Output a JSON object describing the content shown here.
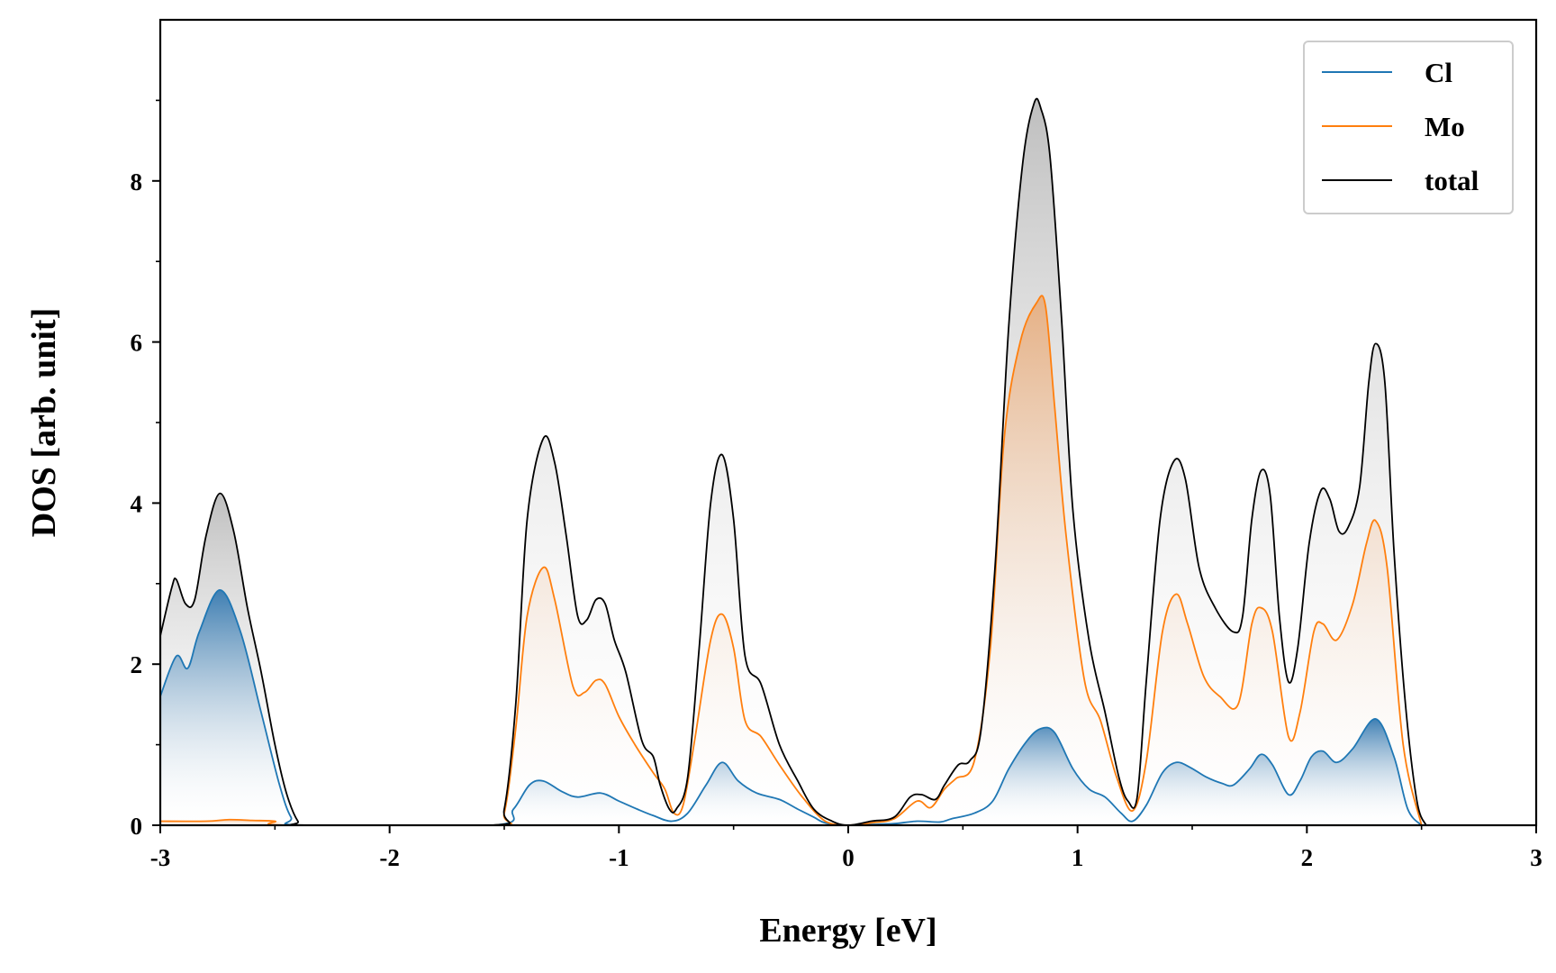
{
  "chart_data": {
    "type": "area",
    "xlabel": "Energy [eV]",
    "ylabel": "DOS [arb. unit]",
    "xlim": [
      -3,
      3
    ],
    "ylim": [
      0,
      10
    ],
    "xticks": [
      "-3",
      "-2",
      "-1",
      "0",
      "1",
      "2",
      "3"
    ],
    "yticks": [
      "0",
      "2",
      "4",
      "6",
      "8"
    ],
    "grid": false,
    "legend_position": "top-right",
    "series": [
      {
        "name": "Cl",
        "color": "#1f77b4",
        "x": [
          -3.0,
          -2.93,
          -2.88,
          -2.83,
          -2.74,
          -2.65,
          -2.56,
          -2.48,
          -2.43,
          -2.38,
          -1.55,
          -1.46,
          -1.39,
          -1.33,
          -1.25,
          -1.18,
          -1.08,
          -1.0,
          -0.92,
          -0.85,
          -0.77,
          -0.7,
          -0.62,
          -0.55,
          -0.48,
          -0.4,
          -0.3,
          -0.22,
          -0.15,
          -0.1,
          0.0,
          0.1,
          0.2,
          0.3,
          0.4,
          0.45,
          0.55,
          0.63,
          0.7,
          0.78,
          0.84,
          0.9,
          0.98,
          1.05,
          1.12,
          1.19,
          1.24,
          1.3,
          1.37,
          1.43,
          1.49,
          1.56,
          1.63,
          1.68,
          1.75,
          1.8,
          1.85,
          1.92,
          1.97,
          2.02,
          2.07,
          2.13,
          2.2,
          2.3,
          2.38,
          2.44,
          2.5
        ],
        "y": [
          1.6,
          2.1,
          1.95,
          2.4,
          2.92,
          2.4,
          1.4,
          0.5,
          0.1,
          0.0,
          0.0,
          0.2,
          0.5,
          0.55,
          0.42,
          0.35,
          0.4,
          0.3,
          0.2,
          0.12,
          0.05,
          0.15,
          0.5,
          0.78,
          0.55,
          0.4,
          0.32,
          0.2,
          0.1,
          0.03,
          0.0,
          0.01,
          0.02,
          0.05,
          0.04,
          0.08,
          0.15,
          0.3,
          0.7,
          1.05,
          1.2,
          1.15,
          0.7,
          0.45,
          0.35,
          0.15,
          0.05,
          0.25,
          0.65,
          0.78,
          0.72,
          0.6,
          0.52,
          0.5,
          0.7,
          0.88,
          0.75,
          0.38,
          0.55,
          0.85,
          0.92,
          0.78,
          0.95,
          1.32,
          0.85,
          0.2,
          0.0
        ]
      },
      {
        "name": "Mo",
        "color": "#ff7f0e",
        "x": [
          -3.0,
          -2.8,
          -2.7,
          -2.6,
          -2.5,
          -2.45,
          -1.55,
          -1.5,
          -1.45,
          -1.4,
          -1.33,
          -1.28,
          -1.2,
          -1.15,
          -1.1,
          -1.06,
          -1.0,
          -0.93,
          -0.85,
          -0.8,
          -0.76,
          -0.72,
          -0.67,
          -0.6,
          -0.55,
          -0.5,
          -0.45,
          -0.38,
          -0.3,
          -0.2,
          -0.1,
          0.0,
          0.1,
          0.2,
          0.3,
          0.36,
          0.42,
          0.47,
          0.55,
          0.62,
          0.68,
          0.75,
          0.82,
          0.86,
          0.9,
          0.95,
          1.03,
          1.1,
          1.17,
          1.24,
          1.3,
          1.37,
          1.43,
          1.48,
          1.55,
          1.62,
          1.7,
          1.76,
          1.8,
          1.85,
          1.92,
          1.97,
          2.03,
          2.07,
          2.13,
          2.2,
          2.26,
          2.3,
          2.35,
          2.42,
          2.5
        ],
        "y": [
          0.05,
          0.05,
          0.07,
          0.06,
          0.05,
          0.0,
          0.0,
          0.15,
          1.2,
          2.6,
          3.2,
          2.8,
          1.72,
          1.65,
          1.8,
          1.75,
          1.35,
          1.0,
          0.65,
          0.45,
          0.15,
          0.25,
          1.05,
          2.3,
          2.62,
          2.2,
          1.3,
          1.1,
          0.75,
          0.35,
          0.05,
          0.0,
          0.03,
          0.08,
          0.3,
          0.22,
          0.45,
          0.58,
          0.8,
          2.2,
          4.8,
          6.0,
          6.48,
          6.45,
          5.2,
          3.6,
          1.8,
          1.3,
          0.6,
          0.18,
          0.8,
          2.4,
          2.87,
          2.5,
          1.85,
          1.6,
          1.5,
          2.5,
          2.7,
          2.4,
          1.1,
          1.4,
          2.4,
          2.5,
          2.3,
          2.75,
          3.5,
          3.78,
          3.2,
          1.0,
          0.0
        ]
      },
      {
        "name": "total",
        "color": "#000000",
        "x": [
          -3.0,
          -2.95,
          -2.93,
          -2.89,
          -2.85,
          -2.8,
          -2.74,
          -2.68,
          -2.62,
          -2.56,
          -2.5,
          -2.45,
          -2.4,
          -2.36,
          -1.55,
          -1.5,
          -1.45,
          -1.4,
          -1.33,
          -1.28,
          -1.23,
          -1.18,
          -1.14,
          -1.1,
          -1.06,
          -1.02,
          -0.97,
          -0.9,
          -0.85,
          -0.82,
          -0.78,
          -0.75,
          -0.7,
          -0.65,
          -0.6,
          -0.55,
          -0.5,
          -0.45,
          -0.38,
          -0.3,
          -0.22,
          -0.15,
          -0.07,
          0.0,
          0.1,
          0.2,
          0.27,
          0.32,
          0.38,
          0.42,
          0.48,
          0.53,
          0.58,
          0.64,
          0.7,
          0.76,
          0.81,
          0.84,
          0.88,
          0.93,
          0.98,
          1.05,
          1.12,
          1.18,
          1.22,
          1.26,
          1.3,
          1.36,
          1.42,
          1.47,
          1.53,
          1.6,
          1.68,
          1.72,
          1.76,
          1.8,
          1.84,
          1.88,
          1.92,
          1.96,
          2.01,
          2.06,
          2.1,
          2.14,
          2.18,
          2.23,
          2.27,
          2.3,
          2.34,
          2.38,
          2.43,
          2.48,
          2.52
        ],
        "y": [
          2.35,
          2.95,
          3.05,
          2.75,
          2.8,
          3.6,
          4.12,
          3.65,
          2.7,
          1.9,
          1.0,
          0.4,
          0.05,
          0.0,
          0.0,
          0.2,
          1.5,
          3.8,
          4.8,
          4.5,
          3.6,
          2.6,
          2.55,
          2.8,
          2.75,
          2.3,
          1.9,
          1.05,
          0.85,
          0.5,
          0.2,
          0.2,
          0.6,
          2.2,
          4.0,
          4.6,
          3.8,
          2.1,
          1.75,
          1.0,
          0.55,
          0.2,
          0.05,
          0.0,
          0.05,
          0.1,
          0.35,
          0.38,
          0.32,
          0.5,
          0.75,
          0.8,
          1.2,
          3.2,
          6.2,
          8.2,
          8.96,
          8.9,
          8.3,
          6.3,
          3.9,
          2.3,
          1.4,
          0.6,
          0.3,
          0.35,
          1.8,
          3.8,
          4.52,
          4.3,
          3.2,
          2.7,
          2.4,
          2.6,
          3.8,
          4.4,
          4.1,
          2.6,
          1.78,
          2.2,
          3.5,
          4.15,
          4.05,
          3.65,
          3.7,
          4.2,
          5.5,
          5.98,
          5.5,
          3.4,
          1.5,
          0.3,
          0.0
        ]
      }
    ]
  }
}
